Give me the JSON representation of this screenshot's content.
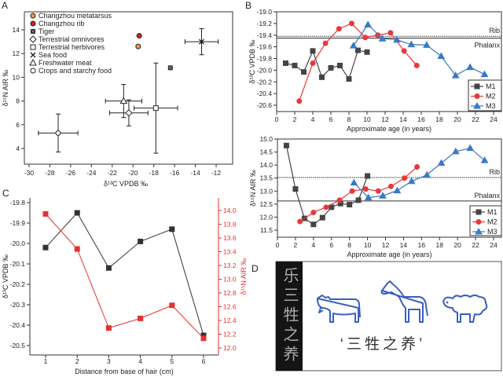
{
  "panel_letters": [
    "A",
    "B",
    "C",
    "D"
  ],
  "colors": {
    "m1": "#444444",
    "m2": "#e8383a",
    "m3": "#3a78c8",
    "orange": "#e8a030",
    "red": "#cc2222",
    "animal_blue": "#3a5fc0"
  },
  "chart_data": [
    {
      "type": "scatter",
      "panel": "A",
      "xlabel": "δ¹³C VPDB ‰",
      "ylabel": "δ¹⁵N AIR ‰",
      "xlim": [
        -30,
        -12
      ],
      "ylim": [
        3,
        15
      ],
      "xticks": [
        -30,
        -28,
        -26,
        -24,
        -22,
        -20,
        -18,
        -16,
        -14,
        -12
      ],
      "xtick_labels": [
        "-30",
        "-28",
        "-26",
        "-24",
        "-22",
        "-20",
        "-18",
        "-16",
        "-14",
        "-12"
      ],
      "yticks": [
        4,
        6,
        8,
        10,
        12,
        14
      ],
      "ytick_labels": [
        "4",
        "6",
        "8",
        "10",
        "12",
        "14"
      ],
      "legend": "top-left",
      "points": [
        {
          "label": "Changzhou metatarsus",
          "x": -19.5,
          "y": 12.6,
          "xerr": 0,
          "yerr": 0,
          "marker": "circle",
          "color": "#e8a030"
        },
        {
          "label": "Changzhou rib",
          "x": -19.4,
          "y": 13.5,
          "xerr": 0,
          "yerr": 0,
          "marker": "circle",
          "color": "#cc2222"
        },
        {
          "label": "Tiger",
          "x": -16.4,
          "y": 10.8,
          "xerr": 0,
          "yerr": 0,
          "marker": "tiger",
          "color": "#222222"
        },
        {
          "label": "Terrestrial omnivores",
          "x": -20.4,
          "y": 7.0,
          "xerr": 1.85,
          "yerr": 1.1,
          "marker": "diamond",
          "color": "#ffffff"
        },
        {
          "label": "Terrestrial herbivores",
          "x": -17.8,
          "y": 7.4,
          "xerr": 2.1,
          "yerr": 3.8,
          "marker": "square",
          "color": "#ffffff"
        },
        {
          "label": "Sea food",
          "x": -13.4,
          "y": 13.0,
          "xerr": 1.6,
          "yerr": 1.1,
          "marker": "x",
          "color": "#222222"
        },
        {
          "label": "Freshwater meat",
          "x": -20.9,
          "y": 8.0,
          "xerr": 1.75,
          "yerr": 1.4,
          "marker": "triangle",
          "color": "#ffffff"
        },
        {
          "label": "Crops and starchy food",
          "x": -27.2,
          "y": 5.3,
          "xerr": 1.9,
          "yerr": 1.6,
          "marker": "circle",
          "color": "#ffffff"
        }
      ]
    },
    {
      "type": "line",
      "panel": "B-top",
      "xlabel": "Approximate age (in years)",
      "ylabel": "δ¹³C VPDB ‰",
      "xlim": [
        0,
        24.5
      ],
      "ylim": [
        -20.7,
        -19.0
      ],
      "xticks": [
        0,
        2,
        4,
        6,
        8,
        10,
        12,
        14,
        16,
        18,
        20,
        22,
        24
      ],
      "xtick_labels": [
        "0",
        "2",
        "4",
        "6",
        "8",
        "10",
        "12",
        "14",
        "16",
        "18",
        "20",
        "22",
        "24"
      ],
      "yticks": [
        -19.0,
        -19.2,
        -19.4,
        -19.6,
        -19.8,
        -20.0,
        -20.2,
        -20.4,
        -20.6
      ],
      "ytick_labels": [
        "-19.0",
        "-19.2",
        "-19.4",
        "-19.6",
        "-19.8",
        "-20.0",
        "-20.2",
        "-20.4",
        "-20.6"
      ],
      "legend": "bottom-right",
      "reference_lines": [
        {
          "label": "Rib",
          "y": -19.42,
          "style": "dotted"
        },
        {
          "label": "Phalanx",
          "y": -19.45,
          "style": "solid"
        }
      ],
      "series": [
        {
          "name": "M1",
          "marker": "square",
          "color": "#444444",
          "x": [
            1,
            2,
            3,
            4,
            5,
            6,
            7,
            8,
            9,
            10
          ],
          "y": [
            -19.88,
            -19.92,
            -20.03,
            -19.67,
            -20.12,
            -19.96,
            -19.92,
            -20.15,
            -19.66,
            -19.69
          ]
        },
        {
          "name": "M2",
          "marker": "circle",
          "color": "#e8383a",
          "x": [
            2.5,
            4,
            5.4,
            6.9,
            8.3,
            9.8,
            11.2,
            12.6,
            14.1,
            15.5
          ],
          "y": [
            -20.53,
            -19.88,
            -19.54,
            -19.29,
            -19.2,
            -19.44,
            -19.4,
            -19.36,
            -19.67,
            -19.92
          ]
        },
        {
          "name": "M3",
          "marker": "triangle",
          "color": "#3a78c8",
          "x": [
            8.5,
            10.1,
            11.7,
            13.3,
            14.9,
            16.6,
            18.2,
            19.8,
            21.4,
            23
          ],
          "y": [
            -19.58,
            -19.22,
            -19.46,
            -19.48,
            -19.56,
            -19.57,
            -19.76,
            -20.09,
            -19.95,
            -20.07
          ]
        }
      ]
    },
    {
      "type": "line",
      "panel": "B-bottom",
      "xlabel": "Approximate age (in years)",
      "ylabel": "δ¹⁵N AIR ‰",
      "xlim": [
        0,
        24.5
      ],
      "ylim": [
        11.2,
        15.0
      ],
      "xticks": [
        0,
        2,
        4,
        6,
        8,
        10,
        12,
        14,
        16,
        18,
        20,
        22,
        24
      ],
      "xtick_labels": [
        "0",
        "2",
        "4",
        "6",
        "8",
        "10",
        "12",
        "14",
        "16",
        "18",
        "20",
        "22",
        "24"
      ],
      "yticks": [
        15.0,
        14.5,
        14.0,
        13.5,
        13.0,
        12.5,
        12.0,
        11.5
      ],
      "ytick_labels": [
        "15.0",
        "14.5",
        "14.0",
        "13.5",
        "13.0",
        "12.5",
        "12.0",
        "11.5"
      ],
      "legend": "bottom-right",
      "reference_lines": [
        {
          "label": "Rib",
          "y": 13.52,
          "style": "dotted"
        },
        {
          "label": "Phalanx",
          "y": 12.62,
          "style": "solid"
        }
      ],
      "series": [
        {
          "name": "M1",
          "marker": "square",
          "color": "#444444",
          "x": [
            1,
            2,
            3,
            4,
            5,
            6,
            7,
            8,
            9,
            10
          ],
          "y": [
            14.75,
            13.08,
            11.95,
            11.72,
            11.98,
            12.38,
            12.52,
            12.48,
            12.65,
            13.58
          ]
        },
        {
          "name": "M2",
          "marker": "circle",
          "color": "#e8383a",
          "x": [
            2.5,
            4,
            5.4,
            6.9,
            8.3,
            9.8,
            11.2,
            12.6,
            14.1,
            15.5
          ],
          "y": [
            11.83,
            12.18,
            12.38,
            12.65,
            13.0,
            13.08,
            13.0,
            13.18,
            13.5,
            13.93
          ]
        },
        {
          "name": "M3",
          "marker": "triangle",
          "color": "#3a78c8",
          "x": [
            8.5,
            10.1,
            11.7,
            13.3,
            14.9,
            16.6,
            18.2,
            19.8,
            21.4,
            23
          ],
          "y": [
            13.32,
            12.75,
            12.82,
            13.02,
            13.38,
            13.62,
            14.08,
            14.52,
            14.65,
            14.18
          ]
        }
      ]
    },
    {
      "type": "line",
      "panel": "C",
      "xlabel": "Distance from base of hair (cm)",
      "ylabel": "δ¹³C VPDB ‰",
      "ylabel_right": "δ¹⁵N AIR ‰",
      "xlim": [
        0.5,
        6.5
      ],
      "ylim": [
        -20.56,
        -19.8
      ],
      "ylim_right": [
        11.9,
        14.2
      ],
      "xticks": [
        1,
        2,
        3,
        4,
        5,
        6
      ],
      "xtick_labels": [
        "1",
        "2",
        "3",
        "4",
        "5",
        "6"
      ],
      "yticks": [
        -19.8,
        -19.9,
        -20.0,
        -20.1,
        -20.2,
        -20.3,
        -20.4,
        -20.5
      ],
      "ytick_labels": [
        "-19.8",
        "-19.9",
        "-20.0",
        "-20.1",
        "-20.2",
        "-20.3",
        "-20.4",
        "-20.5"
      ],
      "yticks_right": [
        14.0,
        13.8,
        13.6,
        13.4,
        13.2,
        13.0,
        12.8,
        12.6,
        12.4,
        12.2,
        12.0
      ],
      "ytick_labels_right": [
        "14.0",
        "13.8",
        "13.6",
        "13.4",
        "13.2",
        "13.0",
        "12.8",
        "12.6",
        "12.4",
        "12.2",
        "12.0"
      ],
      "series": [
        {
          "name": "δ13C",
          "axis": "left",
          "color": "#333333",
          "x": [
            1,
            2,
            3,
            4,
            5,
            6
          ],
          "y": [
            -20.02,
            -19.85,
            -20.12,
            -19.99,
            -19.93,
            -20.45
          ]
        },
        {
          "name": "δ15N",
          "axis": "right",
          "color": "#e83030",
          "x": [
            1,
            2,
            3,
            4,
            5,
            6
          ],
          "y": [
            13.95,
            13.44,
            12.29,
            12.43,
            12.62,
            12.14
          ]
        }
      ]
    }
  ],
  "panel_d": {
    "inscription": "乐三牲之养",
    "caption": "‘三牲之养’",
    "icons": [
      "cow-icon",
      "horse-icon",
      "sheep-icon"
    ]
  }
}
